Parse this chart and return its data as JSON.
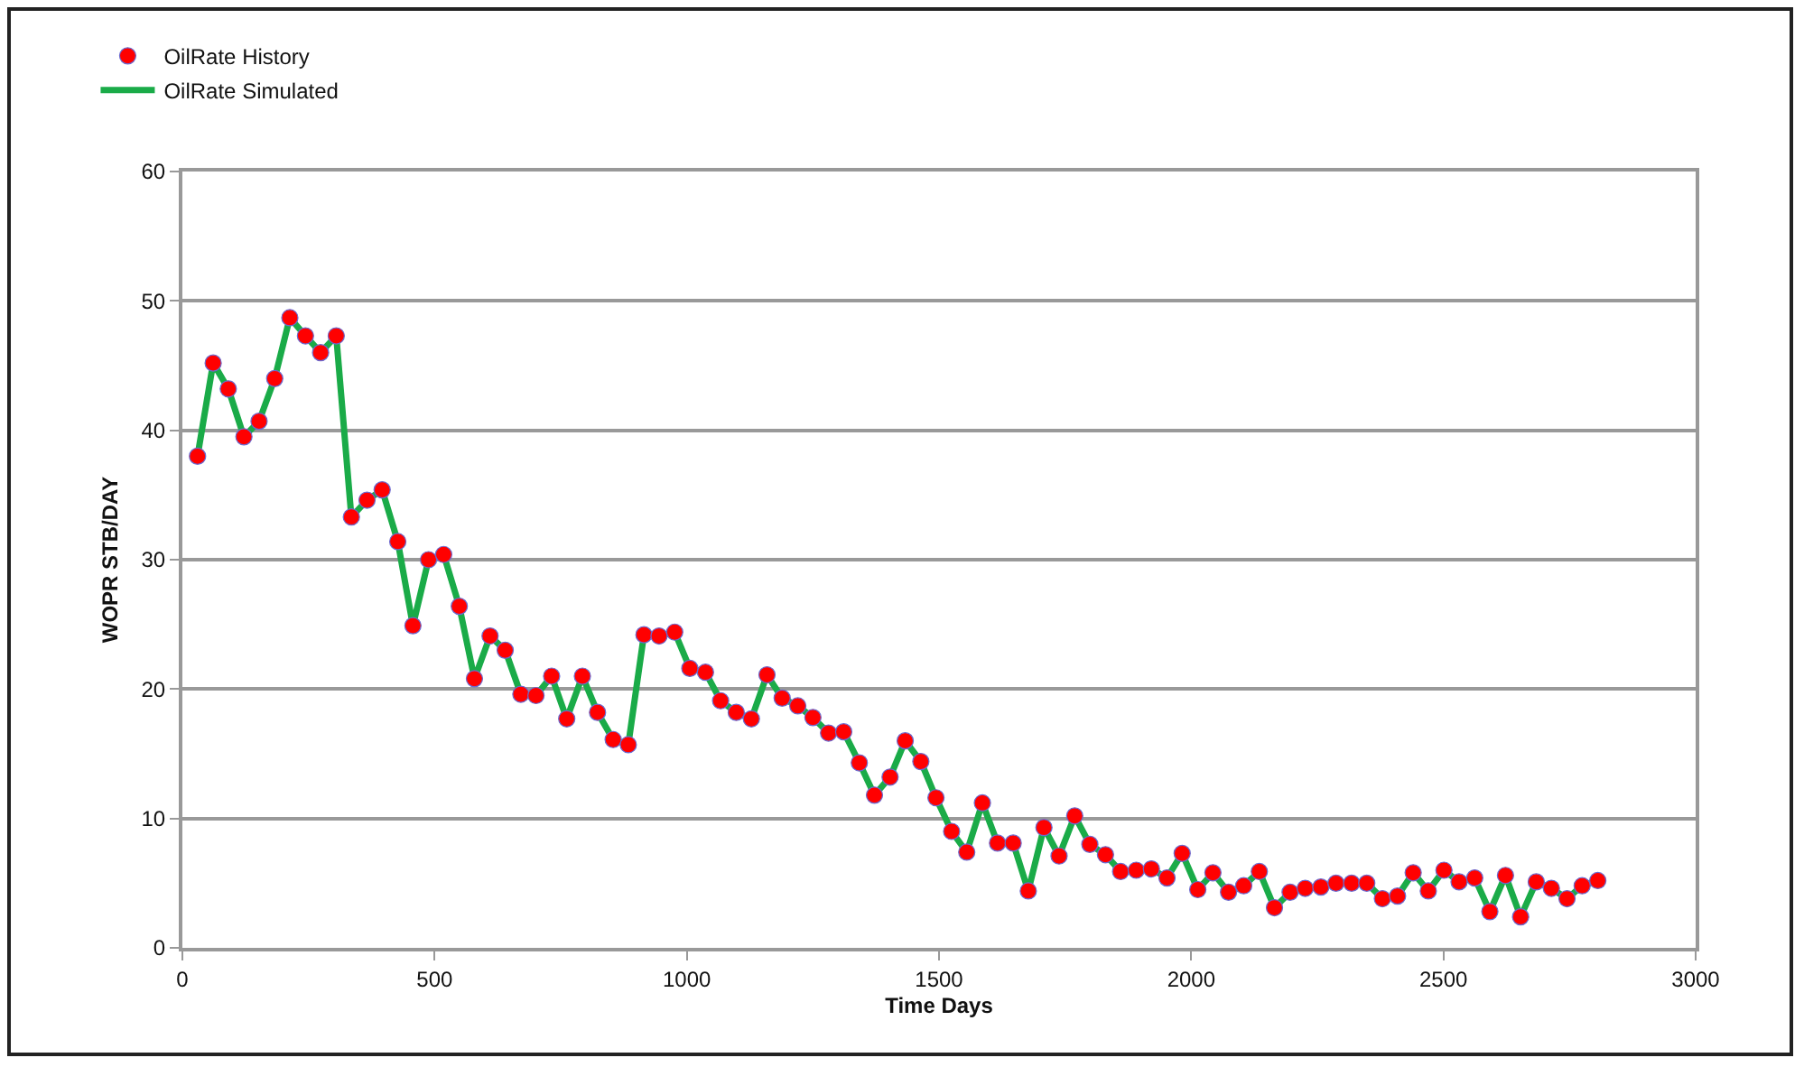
{
  "chart_data": {
    "type": "line",
    "xlabel": "Time Days",
    "ylabel": "WOPR STB/DAY",
    "x": [
      30,
      61,
      91,
      122,
      152,
      183,
      213,
      244,
      274,
      305,
      335,
      366,
      396,
      427,
      457,
      488,
      518,
      549,
      579,
      610,
      640,
      671,
      701,
      732,
      762,
      793,
      823,
      854,
      884,
      915,
      945,
      976,
      1006,
      1037,
      1067,
      1098,
      1128,
      1159,
      1189,
      1220,
      1250,
      1281,
      1311,
      1342,
      1372,
      1403,
      1433,
      1464,
      1494,
      1525,
      1555,
      1586,
      1616,
      1647,
      1677,
      1708,
      1738,
      1769,
      1799,
      1830,
      1860,
      1891,
      1921,
      1952,
      1982,
      2013,
      2043,
      2074,
      2104,
      2135,
      2165,
      2196,
      2226,
      2257,
      2287,
      2318,
      2348,
      2379,
      2409,
      2440,
      2470,
      2501,
      2531,
      2562,
      2592,
      2623,
      2653,
      2684,
      2714,
      2745,
      2775,
      2806
    ],
    "series": [
      {
        "name": "OilRate History",
        "type": "scatter",
        "marker": "circle",
        "color": "#ff0000",
        "values": [
          38,
          45.2,
          43.2,
          39.5,
          40.7,
          44,
          48.7,
          47.3,
          46,
          47.3,
          33.3,
          34.6,
          35.4,
          31.4,
          24.9,
          30,
          30.4,
          26.4,
          20.8,
          24.1,
          23,
          19.6,
          19.5,
          21,
          17.7,
          21,
          18.2,
          16.1,
          15.7,
          24.2,
          24.1,
          24.4,
          21.6,
          21.3,
          19.1,
          18.2,
          17.7,
          21.1,
          19.3,
          18.7,
          17.8,
          16.6,
          16.7,
          14.3,
          11.8,
          13.2,
          16,
          14.4,
          11.6,
          9,
          7.4,
          11.2,
          8.1,
          8.1,
          4.4,
          9.3,
          7.1,
          10.2,
          8,
          7.2,
          5.9,
          6,
          6.1,
          5.4,
          7.3,
          4.5,
          5.8,
          4.3,
          4.8,
          5.9,
          3.1,
          4.3,
          4.6,
          4.7,
          5,
          5,
          5,
          3.8,
          4,
          5.8,
          4.4,
          6,
          5.1,
          5.4,
          2.8,
          5.6,
          2.4,
          5.1,
          4.6,
          3.8,
          4.8,
          5.2
        ]
      },
      {
        "name": "OilRate Simulated",
        "color": "#1aab48",
        "values": [
          38,
          45.2,
          43.2,
          39.5,
          40.7,
          44,
          48.7,
          47.3,
          46,
          47.3,
          33.3,
          34.6,
          35.4,
          31.4,
          24.9,
          30,
          30.4,
          26.4,
          20.8,
          24.1,
          23,
          19.6,
          19.5,
          21,
          17.7,
          21,
          18.2,
          16.1,
          15.7,
          24.2,
          24.1,
          24.4,
          21.6,
          21.3,
          19.1,
          18.2,
          17.7,
          21.1,
          19.3,
          18.7,
          17.8,
          16.6,
          16.7,
          14.3,
          11.8,
          13.2,
          16,
          14.4,
          11.6,
          9,
          7.4,
          11.2,
          8.1,
          8.1,
          4.4,
          9.3,
          7.1,
          10.2,
          8,
          7.2,
          5.9,
          6,
          6.1,
          5.4,
          7.3,
          4.5,
          5.8,
          4.3,
          4.8,
          5.9,
          3.1,
          4.3,
          4.6,
          4.7,
          5,
          5,
          5,
          3.8,
          4,
          5.8,
          4.4,
          6,
          5.1,
          5.4,
          2.8,
          5.6,
          2.4,
          5.1,
          4.6,
          3.8,
          4.8,
          5.2
        ]
      }
    ],
    "xlim": [
      0,
      3000
    ],
    "xticks": [
      0,
      500,
      1000,
      1500,
      2000,
      2500,
      3000
    ],
    "ylim": [
      0,
      60
    ],
    "yticks": [
      0,
      10,
      20,
      30,
      40,
      50,
      60
    ],
    "grid": "y",
    "legend": "top left",
    "line_style": "solid"
  }
}
